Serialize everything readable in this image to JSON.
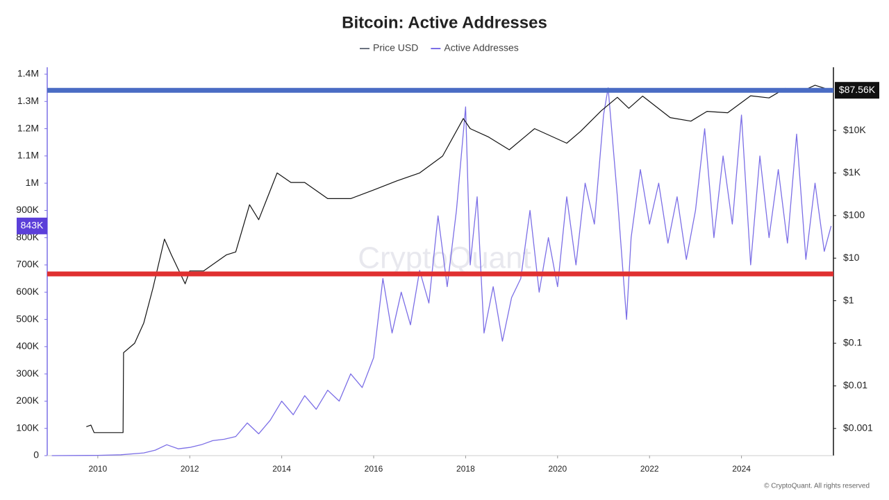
{
  "chart_data": {
    "type": "line",
    "title": "Bitcoin: Active Addresses",
    "watermark": "CryptoQuant",
    "footer": "© CryptoQuant. All rights reserved",
    "xlim": [
      2008.9,
      2026.0
    ],
    "xticks": [
      2010,
      2012,
      2014,
      2016,
      2018,
      2020,
      2022,
      2024
    ],
    "ylim": [
      0,
      1400000
    ],
    "yticks": [
      0,
      {
        "value": 100000,
        "label": "100K"
      },
      {
        "value": 200000,
        "label": "200K"
      },
      {
        "value": 300000,
        "label": "300K"
      },
      {
        "value": 400000,
        "label": "400K"
      },
      {
        "value": 500000,
        "label": "500K"
      },
      {
        "value": 600000,
        "label": "600K"
      },
      {
        "value": 700000,
        "label": "700K"
      },
      {
        "value": 800000,
        "label": "800K"
      },
      {
        "value": 900000,
        "label": "900K"
      },
      {
        "value": 1000000,
        "label": "1M"
      },
      {
        "value": 1100000,
        "label": "1.1M"
      },
      {
        "value": 1200000,
        "label": "1.2M"
      },
      {
        "value": 1300000,
        "label": "1.3M"
      },
      {
        "value": 1400000,
        "label": "1.4M"
      }
    ],
    "y2lim": [
      0.00023,
      209000
    ],
    "y2scale": "log",
    "y2ticks": [
      {
        "value": 0.001,
        "label": "$0.001"
      },
      {
        "value": 0.01,
        "label": "$0.01"
      },
      {
        "value": 0.1,
        "label": "$0.1"
      },
      {
        "value": 1,
        "label": "$1"
      },
      {
        "value": 10,
        "label": "$10"
      },
      {
        "value": 100,
        "label": "$100"
      },
      {
        "value": 1000,
        "label": "$1K"
      },
      {
        "value": 10000,
        "label": "$10K"
      }
    ],
    "grid": false,
    "series": [
      {
        "name": "Price USD",
        "color": "#111111",
        "legend_color": "#6b7280",
        "axis": "y2",
        "x": [
          2009.75,
          2009.85,
          2009.92,
          2010.55,
          2010.56,
          2010.8,
          2011.0,
          2011.2,
          2011.45,
          2011.6,
          2011.9,
          2012.0,
          2012.3,
          2012.8,
          2013.0,
          2013.3,
          2013.5,
          2013.9,
          2014.2,
          2014.5,
          2015.0,
          2015.5,
          2016.0,
          2016.5,
          2017.0,
          2017.5,
          2017.95,
          2018.1,
          2018.5,
          2018.95,
          2019.5,
          2020.2,
          2020.5,
          2020.95,
          2021.3,
          2021.55,
          2021.85,
          2022.45,
          2022.9,
          2023.25,
          2023.7,
          2024.2,
          2024.6,
          2024.95,
          2025.3,
          2025.6,
          2025.95
        ],
        "values": [
          0.0011,
          0.0012,
          0.0008,
          0.0008,
          0.06,
          0.1,
          0.3,
          2,
          28,
          12,
          2.5,
          5,
          5,
          12,
          14,
          180,
          80,
          1000,
          600,
          600,
          250,
          250,
          400,
          650,
          1000,
          2500,
          19000,
          11000,
          7000,
          3500,
          11000,
          5000,
          9500,
          29000,
          60000,
          33000,
          64000,
          20000,
          16500,
          28000,
          26000,
          65000,
          58000,
          97000,
          82000,
          115000,
          87560
        ]
      },
      {
        "name": "Active Addresses",
        "color": "#7b6ee6",
        "axis": "y",
        "x": [
          2009.0,
          2009.5,
          2010.0,
          2010.5,
          2011.0,
          2011.25,
          2011.5,
          2011.75,
          2012.0,
          2012.25,
          2012.5,
          2012.75,
          2013.0,
          2013.25,
          2013.5,
          2013.75,
          2014.0,
          2014.25,
          2014.5,
          2014.75,
          2015.0,
          2015.25,
          2015.5,
          2015.75,
          2016.0,
          2016.2,
          2016.4,
          2016.6,
          2016.8,
          2017.0,
          2017.2,
          2017.4,
          2017.6,
          2017.8,
          2018.0,
          2018.1,
          2018.25,
          2018.4,
          2018.6,
          2018.8,
          2019.0,
          2019.2,
          2019.4,
          2019.6,
          2019.8,
          2020.0,
          2020.2,
          2020.4,
          2020.6,
          2020.8,
          2021.0,
          2021.1,
          2021.3,
          2021.5,
          2021.6,
          2021.8,
          2022.0,
          2022.2,
          2022.4,
          2022.6,
          2022.8,
          2023.0,
          2023.2,
          2023.4,
          2023.6,
          2023.8,
          2024.0,
          2024.2,
          2024.4,
          2024.6,
          2024.8,
          2025.0,
          2025.2,
          2025.4,
          2025.6,
          2025.8,
          2025.95
        ],
        "values": [
          0,
          500,
          1000,
          3000,
          10000,
          20000,
          40000,
          25000,
          30000,
          40000,
          55000,
          60000,
          70000,
          120000,
          80000,
          130000,
          200000,
          150000,
          220000,
          170000,
          240000,
          200000,
          300000,
          250000,
          360000,
          650000,
          450000,
          600000,
          480000,
          680000,
          560000,
          880000,
          620000,
          900000,
          1280000,
          700000,
          950000,
          450000,
          620000,
          420000,
          580000,
          650000,
          900000,
          600000,
          800000,
          620000,
          950000,
          700000,
          1000000,
          850000,
          1250000,
          1350000,
          950000,
          500000,
          800000,
          1050000,
          850000,
          1000000,
          780000,
          950000,
          720000,
          900000,
          1200000,
          800000,
          1100000,
          850000,
          1250000,
          700000,
          1100000,
          800000,
          1050000,
          780000,
          1180000,
          720000,
          1000000,
          750000,
          843000
        ]
      }
    ],
    "reference_lines": [
      {
        "value": 87560,
        "axis": "y2",
        "color": "#4a6cc4"
      },
      {
        "value": 667000,
        "axis": "y",
        "color": "#e03030"
      }
    ],
    "annotations": [
      {
        "label": "843K",
        "value": 843000,
        "axis": "y",
        "color": "#5b3fd9"
      },
      {
        "label": "$87.56K",
        "value": 87560,
        "axis": "y2",
        "color": "#111111"
      }
    ]
  }
}
